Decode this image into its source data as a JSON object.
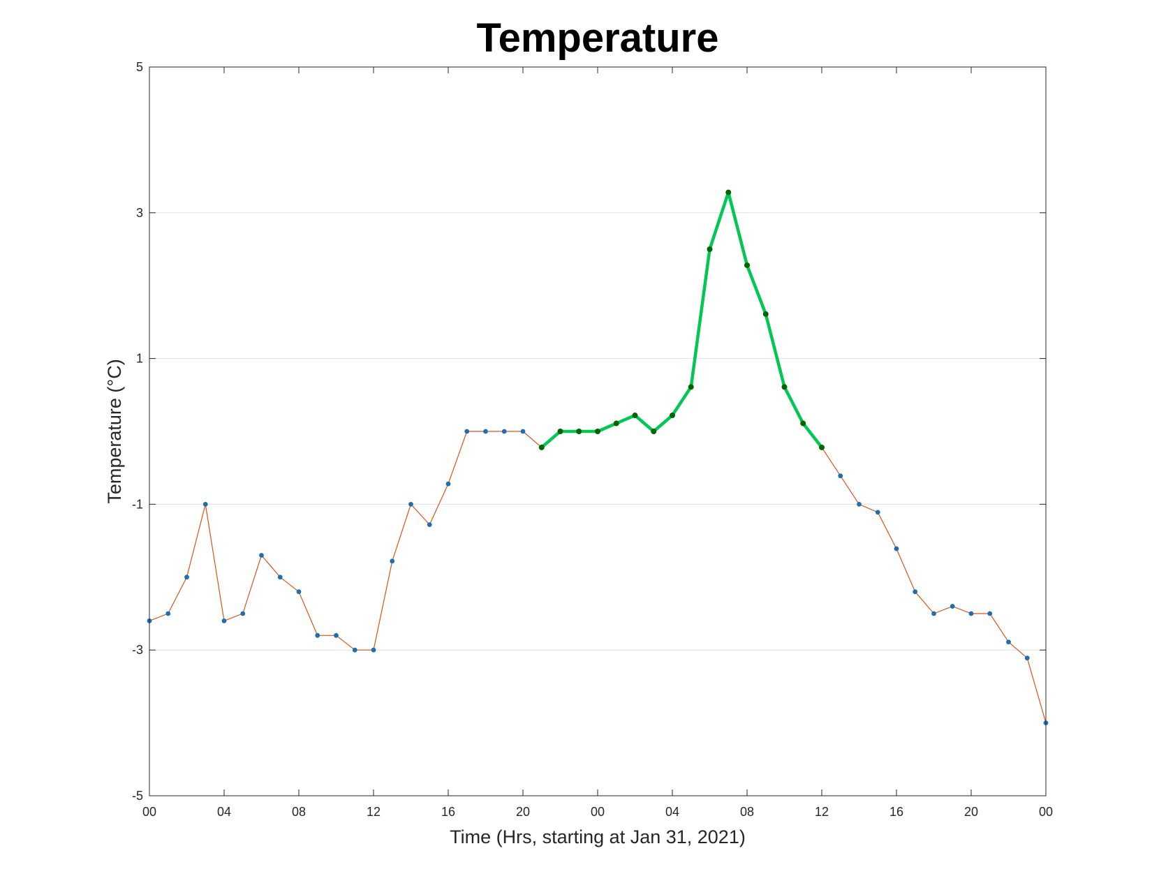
{
  "chart_data": {
    "type": "line",
    "title": "Temperature",
    "xlabel": "Time (Hrs, starting at Jan 31, 2021)",
    "ylabel": "Temperature (°C)",
    "ylim": [
      -5,
      5
    ],
    "xlim": [
      0,
      48
    ],
    "yticks": [
      -5,
      -3,
      -1,
      1,
      3,
      5
    ],
    "yticklabels": [
      "-5",
      "-3",
      "-1",
      "1",
      "3",
      "5"
    ],
    "xticks": [
      0,
      4,
      8,
      12,
      16,
      20,
      24,
      28,
      32,
      36,
      40,
      44,
      48
    ],
    "xticklabels": [
      "00",
      "04",
      "08",
      "12",
      "16",
      "20",
      "00",
      "04",
      "08",
      "12",
      "16",
      "20",
      "00"
    ],
    "grid": "horizontal",
    "colors": {
      "line": "#d95319",
      "marker": "#1f6fae",
      "highlight_line": "#00c853",
      "highlight_marker": "#006400",
      "grid": "#e0e0e0",
      "axis": "#262626"
    },
    "series": [
      {
        "x": [
          0,
          1,
          2,
          3,
          4,
          5,
          6,
          7,
          8,
          9,
          10,
          11,
          12,
          13,
          14,
          15,
          16,
          17,
          18,
          19,
          20,
          21,
          22,
          23,
          24,
          25,
          26,
          27,
          28,
          29,
          30,
          31,
          32,
          33,
          34,
          35,
          36,
          37,
          38,
          39,
          40,
          41,
          42,
          43,
          44,
          45,
          46,
          47,
          48
        ],
        "y": [
          -2.6,
          -2.5,
          -2.0,
          -1.0,
          -2.6,
          -2.5,
          -1.7,
          -2.0,
          -2.2,
          -2.8,
          -2.8,
          -3.0,
          -3.0,
          -1.78,
          -1.0,
          -1.28,
          -0.72,
          0.0,
          0.0,
          0.0,
          0.0,
          -0.22,
          0.0,
          0.0,
          0.0,
          0.11,
          0.22,
          0.0,
          0.22,
          0.61,
          2.5,
          3.28,
          2.28,
          1.61,
          0.61,
          0.11,
          -0.22,
          -0.61,
          -1.0,
          -1.11,
          -1.61,
          -2.2,
          -2.5,
          -2.4,
          -2.5,
          -2.5,
          -2.89,
          -3.11,
          -4.0
        ]
      }
    ],
    "highlight": {
      "x": [
        21,
        22,
        23,
        24,
        25,
        26,
        27,
        28,
        29,
        30,
        31,
        32,
        33,
        34,
        35,
        36
      ],
      "y": [
        -0.22,
        0.0,
        0.0,
        0.0,
        0.11,
        0.22,
        0.0,
        0.22,
        0.61,
        2.5,
        3.28,
        2.28,
        1.61,
        0.61,
        0.11,
        -0.22
      ]
    }
  }
}
